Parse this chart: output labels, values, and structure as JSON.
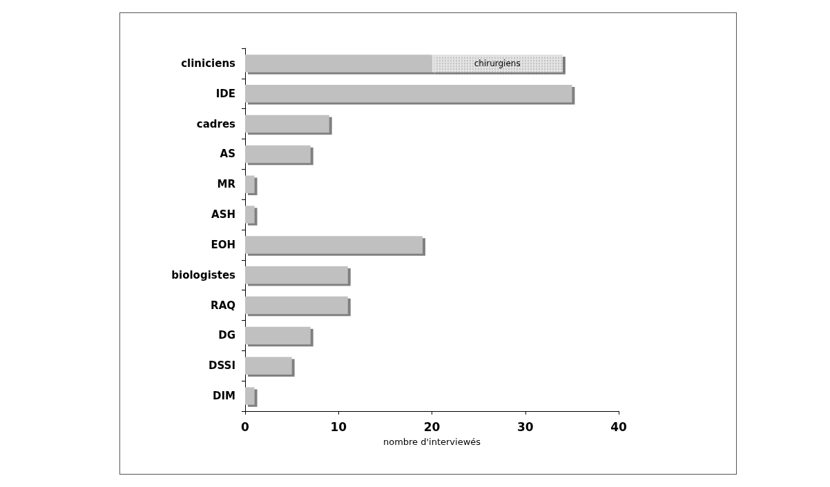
{
  "chart_data": {
    "type": "bar",
    "orientation": "horizontal",
    "stacked": true,
    "xlabel": "nombre d'interviewés",
    "categories": [
      "cliniciens",
      "IDE",
      "cadres",
      "AS",
      "MR",
      "ASH",
      "EOH",
      "biologistes",
      "RAQ",
      "DG",
      "DSSI",
      "DIM"
    ],
    "series": [
      {
        "color": "#c0c0c0",
        "values": [
          20,
          35,
          9,
          7,
          1,
          1,
          19,
          11,
          11,
          7,
          5,
          1
        ]
      },
      {
        "name": "chirurgiens",
        "color": "#e4e4e4",
        "values": [
          14,
          null,
          null,
          null,
          null,
          null,
          null,
          null,
          null,
          null,
          null,
          null
        ]
      }
    ],
    "xlim": [
      0,
      40
    ],
    "xticks": [
      0,
      10,
      20,
      30,
      40
    ],
    "grid": false,
    "legend": false
  }
}
